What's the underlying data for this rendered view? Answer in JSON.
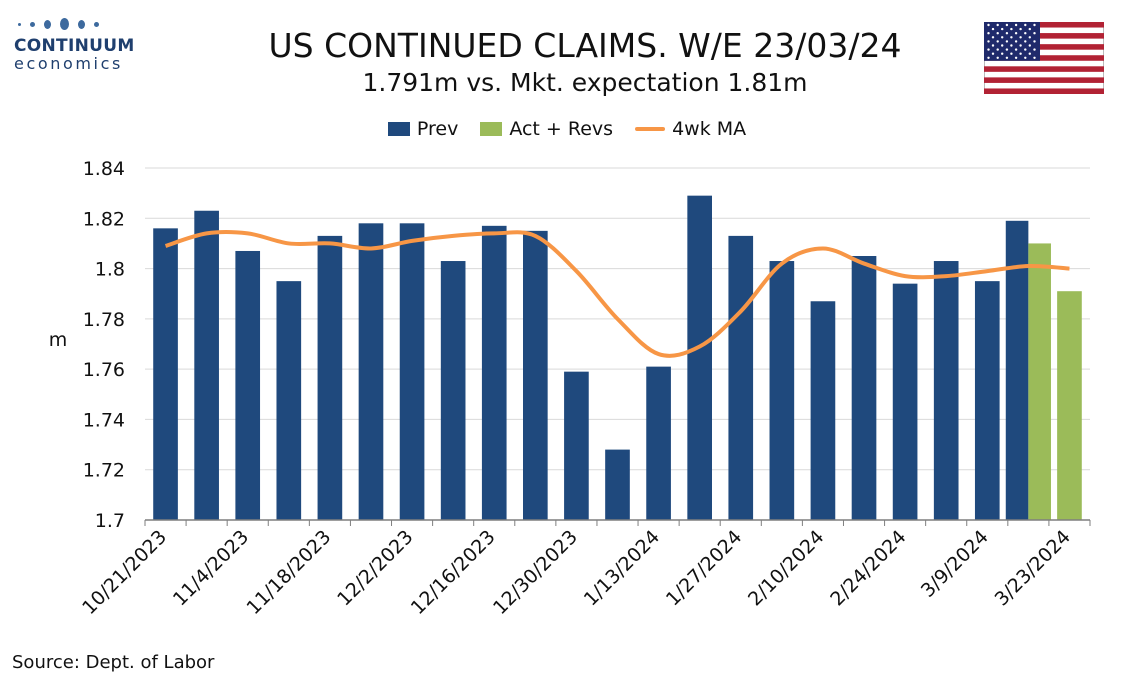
{
  "logo": {
    "word1": "CONTINUUM",
    "word2": "economics"
  },
  "header": {
    "title": "US CONTINUED CLAIMS. W/E 23/03/24",
    "subtitle": "1.791m vs. Mkt. expectation 1.81m"
  },
  "legend": {
    "prev": "Prev",
    "act": "Act + Revs",
    "ma": "4wk MA"
  },
  "colors": {
    "prev": "#1f497d",
    "act": "#9bbb59",
    "ma": "#f79646"
  },
  "source": "Source: Dept. of Labor",
  "chart_data": {
    "type": "bar",
    "title": "US CONTINUED CLAIMS. W/E 23/03/24",
    "subtitle": "1.791m vs. Mkt. expectation 1.81m",
    "xlabel": "",
    "ylabel": "m",
    "ylim": [
      1.7,
      1.84
    ],
    "yticks": [
      "1.7",
      "1.72",
      "1.74",
      "1.76",
      "1.78",
      "1.8",
      "1.82",
      "1.84"
    ],
    "grid": true,
    "legend_position": "top-center",
    "categories": [
      "10/21/2023",
      "10/28/2023",
      "11/4/2023",
      "11/11/2023",
      "11/18/2023",
      "11/25/2023",
      "12/2/2023",
      "12/9/2023",
      "12/16/2023",
      "12/23/2023",
      "12/30/2023",
      "1/6/2024",
      "1/13/2024",
      "1/20/2024",
      "1/27/2024",
      "2/3/2024",
      "2/10/2024",
      "2/17/2024",
      "2/24/2024",
      "3/2/2024",
      "3/9/2024",
      "3/16/2024",
      "3/23/2024"
    ],
    "x_tick_labels": [
      "10/21/2023",
      "11/4/2023",
      "11/18/2023",
      "12/2/2023",
      "12/16/2023",
      "12/30/2023",
      "1/13/2024",
      "1/27/2024",
      "2/10/2024",
      "2/24/2024",
      "3/9/2024",
      "3/23/2024"
    ],
    "series": [
      {
        "name": "Prev",
        "kind": "bar",
        "values": [
          1.816,
          1.823,
          1.807,
          1.795,
          1.813,
          1.818,
          1.818,
          1.803,
          1.817,
          1.815,
          1.759,
          1.728,
          1.761,
          1.829,
          1.813,
          1.803,
          1.787,
          1.805,
          1.794,
          1.803,
          1.795,
          1.819,
          null
        ]
      },
      {
        "name": "Act + Revs",
        "kind": "bar",
        "values": [
          null,
          null,
          null,
          null,
          null,
          null,
          null,
          null,
          null,
          null,
          null,
          null,
          null,
          null,
          null,
          null,
          null,
          null,
          null,
          null,
          null,
          1.81,
          1.791
        ]
      },
      {
        "name": "4wk MA",
        "kind": "line",
        "values": [
          1.809,
          1.814,
          1.814,
          1.81,
          1.81,
          1.808,
          1.811,
          1.813,
          1.814,
          1.813,
          1.799,
          1.78,
          1.766,
          1.769,
          1.783,
          1.802,
          1.808,
          1.802,
          1.797,
          1.797,
          1.799,
          1.801,
          1.8
        ]
      }
    ]
  }
}
